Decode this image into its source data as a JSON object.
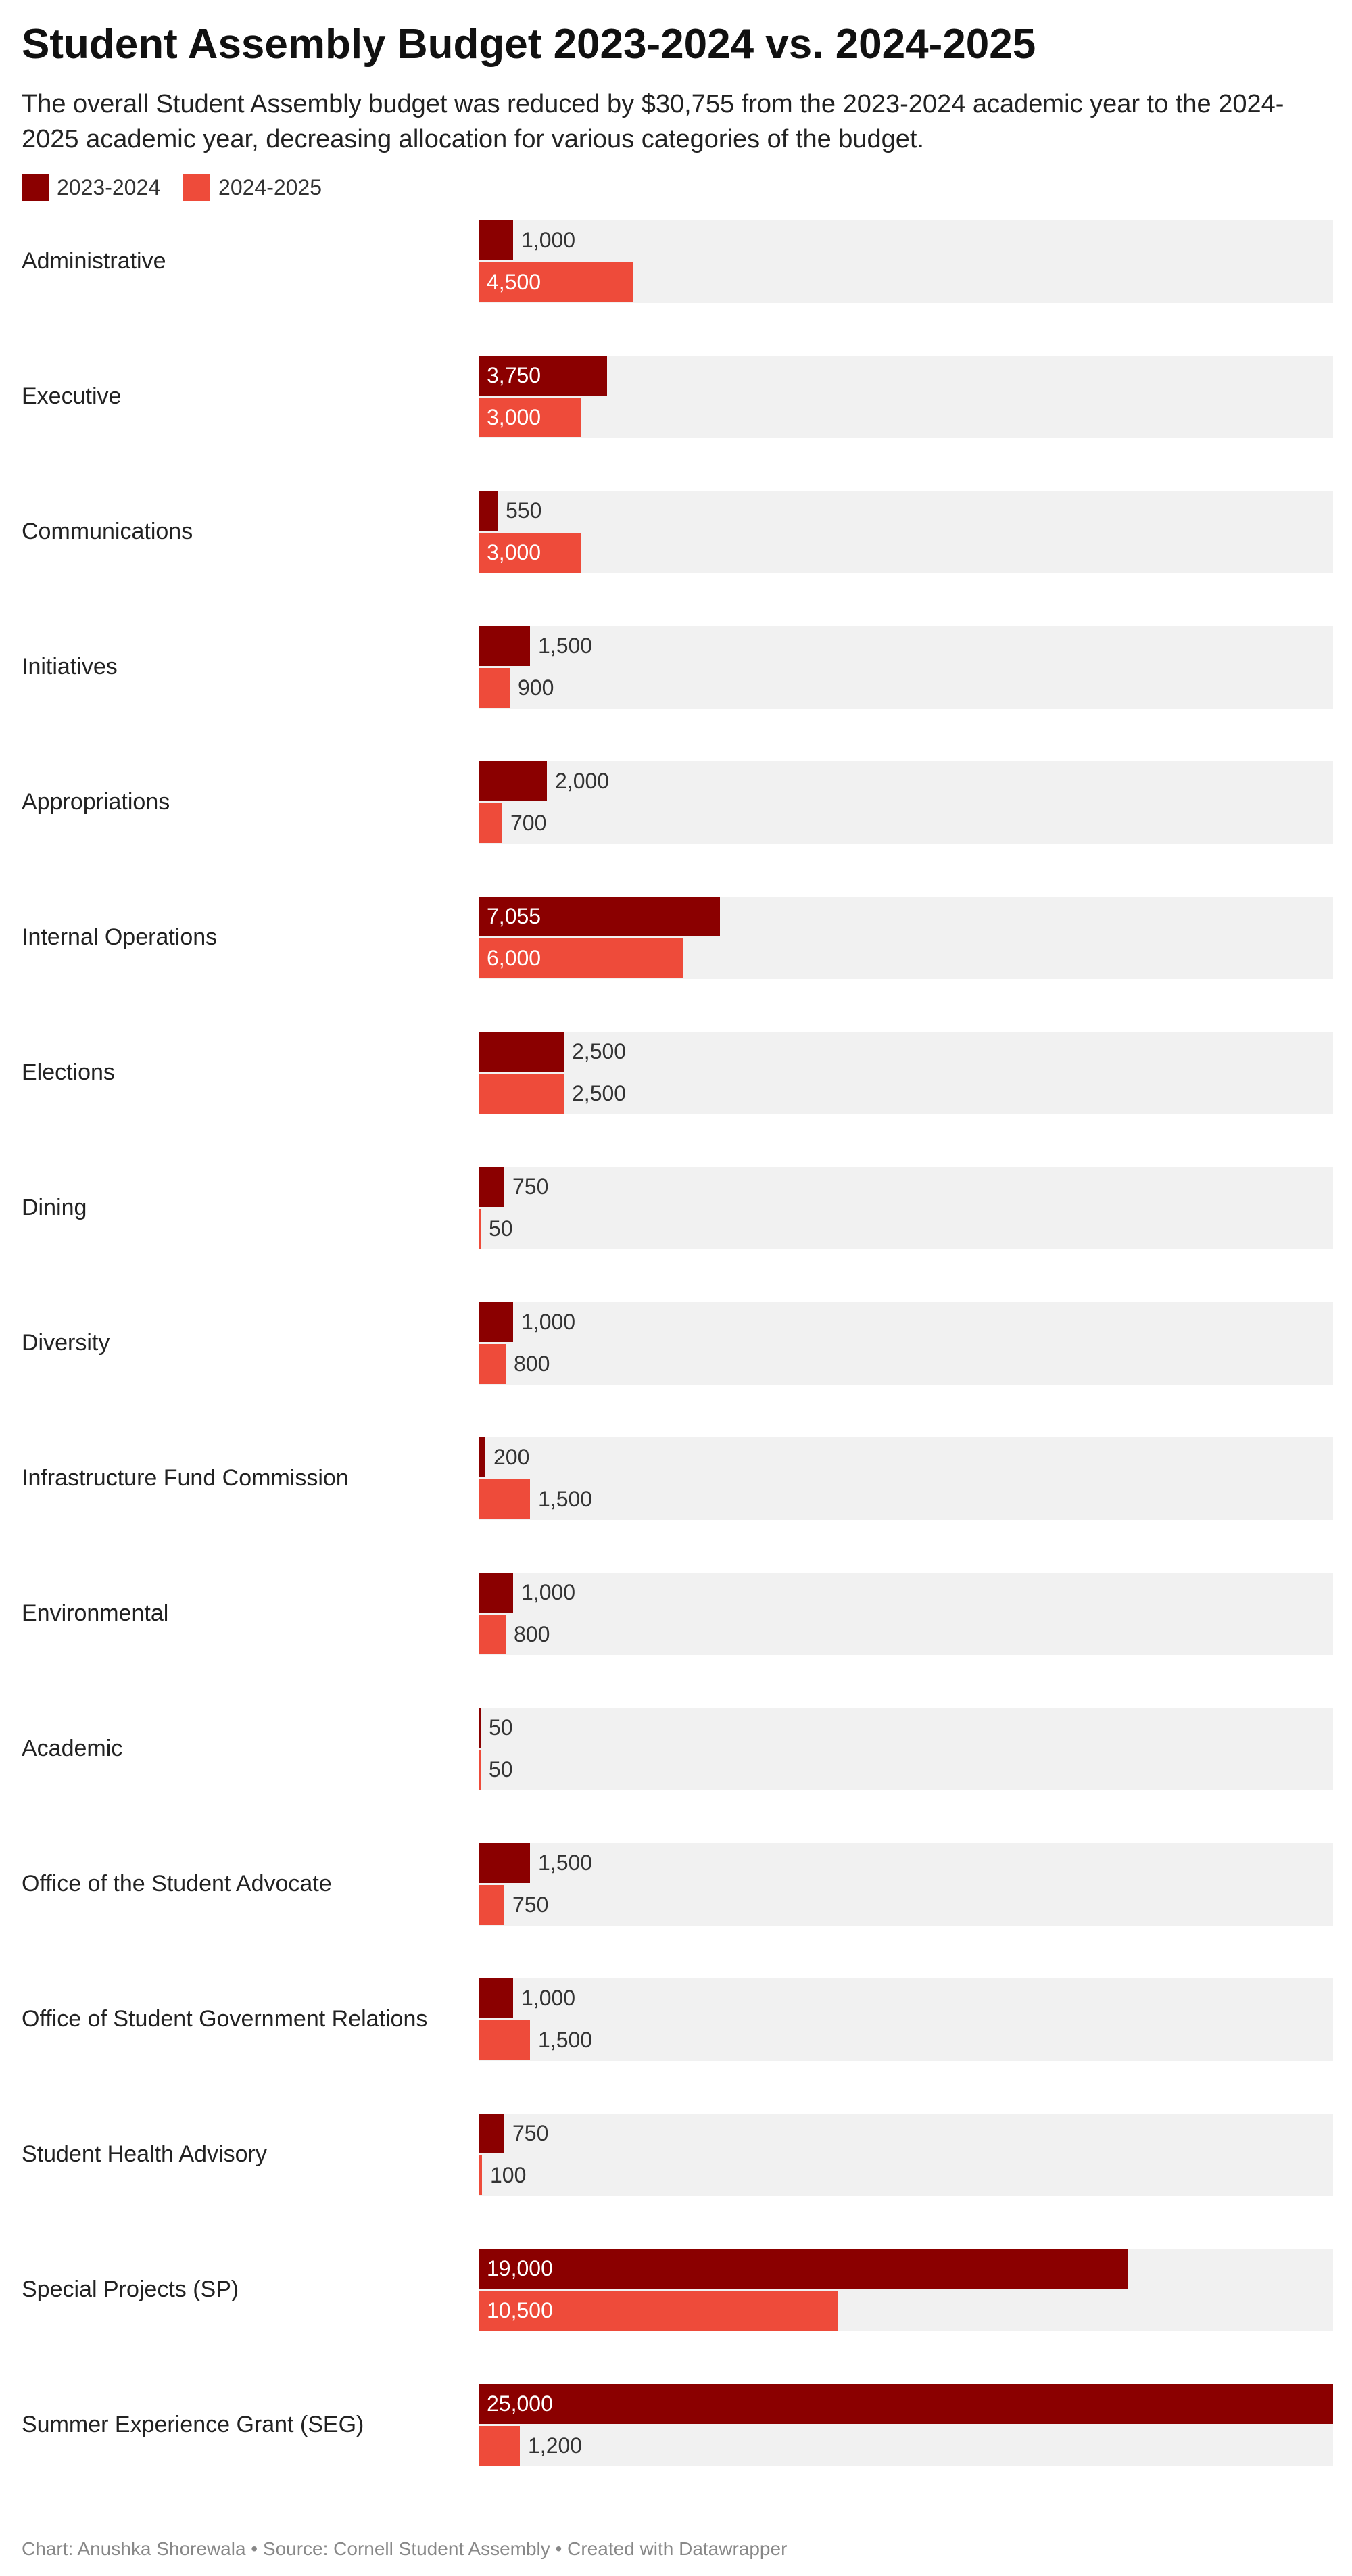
{
  "title": "Student Assembly Budget 2023-2024 vs. 2024-2025",
  "subtitle": "The overall Student Assembly budget was reduced by $30,755 from the 2023-2024 academic year to the 2024-2025 academic year, decreasing allocation for various categories of the budget.",
  "footer": "Chart: Anushka Shorewala • Source: Cornell Student Assembly • Created with Datawrapper",
  "colors": {
    "series_2023": "#8b0000",
    "series_2024": "#ee4b3a",
    "row_background": "#f1f1f1"
  },
  "chart_data": {
    "type": "bar",
    "orientation": "horizontal",
    "legend_position": "top-left",
    "xlim": [
      0,
      25000
    ],
    "categories": [
      "Administrative",
      "Executive",
      "Communications",
      "Initiatives",
      "Appropriations",
      "Internal Operations",
      "Elections",
      "Dining",
      "Diversity",
      "Infrastructure Fund Commission",
      "Environmental",
      "Academic",
      "Office of the Student Advocate",
      "Office of Student Government Relations",
      "Student Health Advisory",
      "Special Projects (SP)",
      "Summer Experience Grant (SEG)"
    ],
    "series": [
      {
        "name": "2023-2024",
        "color": "#8b0000",
        "values": [
          1000,
          3750,
          550,
          1500,
          2000,
          7055,
          2500,
          750,
          1000,
          200,
          1000,
          50,
          1500,
          1000,
          750,
          19000,
          25000
        ],
        "labels": [
          "1,000",
          "3,750",
          "550",
          "1,500",
          "2,000",
          "7,055",
          "2,500",
          "750",
          "1,000",
          "200",
          "1,000",
          "50",
          "1,500",
          "1,000",
          "750",
          "19,000",
          "25,000"
        ]
      },
      {
        "name": "2024-2025",
        "color": "#ee4b3a",
        "values": [
          4500,
          3000,
          3000,
          900,
          700,
          6000,
          2500,
          50,
          800,
          1500,
          800,
          50,
          750,
          1500,
          100,
          10500,
          1200
        ],
        "labels": [
          "4,500",
          "3,000",
          "3,000",
          "900",
          "700",
          "6,000",
          "2,500",
          "50",
          "800",
          "1,500",
          "800",
          "50",
          "750",
          "1,500",
          "100",
          "10,500",
          "1,200"
        ]
      }
    ]
  }
}
